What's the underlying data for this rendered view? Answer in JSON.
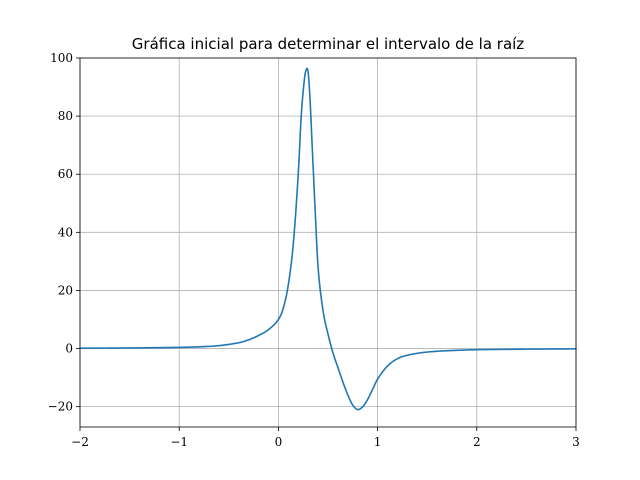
{
  "chart_data": {
    "type": "line",
    "title": "Gráfica inicial para determinar el intervalo de la raíz",
    "xlabel": "",
    "ylabel": "",
    "xlim": [
      -2,
      3
    ],
    "ylim": [
      -27,
      100
    ],
    "grid": true,
    "x_ticks": [
      -2,
      -1,
      0,
      1,
      2,
      3
    ],
    "x_tick_labels": [
      "−2",
      "−1",
      "0",
      "1",
      "2",
      "3"
    ],
    "y_ticks": [
      -20,
      0,
      20,
      40,
      60,
      80,
      100
    ],
    "y_tick_labels": [
      "−20",
      "0",
      "20",
      "40",
      "60",
      "80",
      "100"
    ],
    "series": [
      {
        "color": "#1f77b4",
        "x": [
          -2.0,
          -1.5,
          -1.0,
          -0.8,
          -0.6,
          -0.4,
          -0.3,
          -0.2,
          -0.1,
          0.0,
          0.05,
          0.1,
          0.15,
          0.2,
          0.23,
          0.26,
          0.28,
          0.3,
          0.32,
          0.34,
          0.37,
          0.4,
          0.45,
          0.5,
          0.55,
          0.6,
          0.65,
          0.7,
          0.75,
          0.8,
          0.85,
          0.9,
          0.95,
          1.0,
          1.1,
          1.2,
          1.3,
          1.5,
          1.8,
          2.0,
          2.5,
          3.0
        ],
        "y": [
          0.1,
          0.2,
          0.4,
          0.6,
          1.0,
          2.0,
          3.0,
          4.5,
          6.5,
          10.0,
          14.0,
          22.0,
          36.0,
          60.0,
          80.0,
          92.0,
          96.0,
          95.0,
          85.0,
          70.0,
          48.0,
          28.0,
          13.0,
          5.0,
          -1.5,
          -6.5,
          -11.5,
          -16.0,
          -19.5,
          -21.0,
          -20.0,
          -17.5,
          -14.0,
          -10.5,
          -6.0,
          -3.5,
          -2.3,
          -1.2,
          -0.6,
          -0.4,
          -0.2,
          -0.1
        ]
      }
    ]
  }
}
